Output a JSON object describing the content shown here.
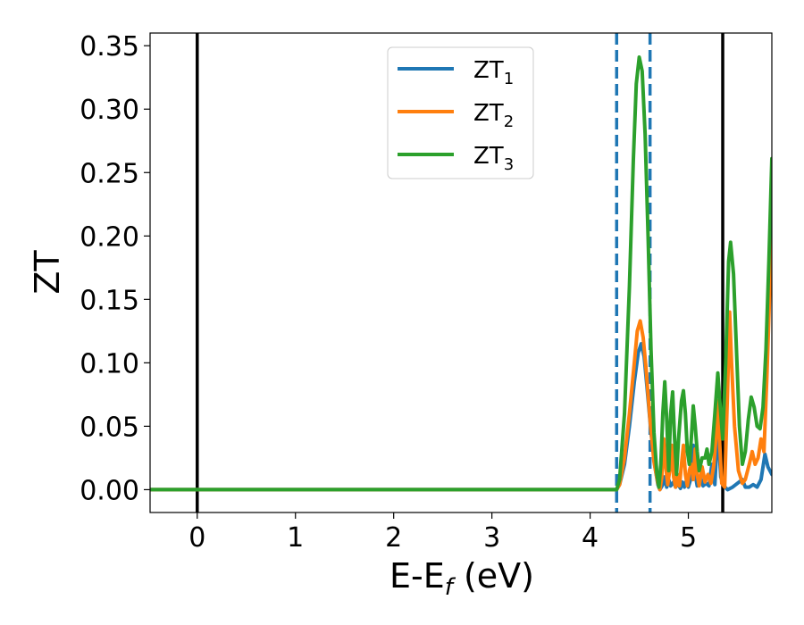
{
  "chart_data": {
    "type": "line",
    "xlabel": "E-E",
    "xlabel_sub": "f",
    "xlabel_unit": " (eV)",
    "ylabel": "ZT",
    "xlim": [
      -0.48,
      5.85
    ],
    "ylim": [
      -0.018,
      0.36
    ],
    "xticks": [
      0,
      1,
      2,
      3,
      4,
      5
    ],
    "xtick_labels": [
      "0",
      "1",
      "2",
      "3",
      "4",
      "5"
    ],
    "yticks": [
      0.0,
      0.05,
      0.1,
      0.15,
      0.2,
      0.25,
      0.3,
      0.35
    ],
    "ytick_labels": [
      "0.00",
      "0.05",
      "0.10",
      "0.15",
      "0.20",
      "0.25",
      "0.30",
      "0.35"
    ],
    "grid": false,
    "legend_position": "top-center",
    "vlines": [
      {
        "x": 0.0,
        "style": "solid",
        "color": "#000000"
      },
      {
        "x": 5.35,
        "style": "solid",
        "color": "#000000"
      },
      {
        "x": 4.27,
        "style": "dashed",
        "color": "#1f77b4"
      },
      {
        "x": 4.61,
        "style": "dashed",
        "color": "#1f77b4"
      }
    ],
    "series": [
      {
        "name": "ZT",
        "name_sub": "1",
        "color": "#1f77b4",
        "points": [
          [
            -0.48,
            0
          ],
          [
            4.27,
            0
          ],
          [
            4.3,
            0.004
          ],
          [
            4.35,
            0.02
          ],
          [
            4.4,
            0.05
          ],
          [
            4.45,
            0.085
          ],
          [
            4.49,
            0.108
          ],
          [
            4.52,
            0.115
          ],
          [
            4.55,
            0.105
          ],
          [
            4.58,
            0.08
          ],
          [
            4.62,
            0.045
          ],
          [
            4.66,
            0.018
          ],
          [
            4.69,
            0.004
          ],
          [
            4.71,
            0
          ],
          [
            4.74,
            0.004
          ],
          [
            4.76,
            0.01
          ],
          [
            4.78,
            0.002
          ],
          [
            4.8,
            0.008
          ],
          [
            4.82,
            0.003
          ],
          [
            4.85,
            0.006
          ],
          [
            4.87,
            0.002
          ],
          [
            4.89,
            0.005
          ],
          [
            4.92,
            0.001
          ],
          [
            4.94,
            0.006
          ],
          [
            4.96,
            0.002
          ],
          [
            4.98,
            0.007
          ],
          [
            5.0,
            0.002
          ],
          [
            5.03,
            0.01
          ],
          [
            5.05,
            0.035
          ],
          [
            5.07,
            0.012
          ],
          [
            5.09,
            0.003
          ],
          [
            5.12,
            0.01
          ],
          [
            5.15,
            0.003
          ],
          [
            5.18,
            0.005
          ],
          [
            5.21,
            0.003
          ],
          [
            5.24,
            0.02
          ],
          [
            5.27,
            0.004
          ],
          [
            5.3,
            0.05
          ],
          [
            5.33,
            0.01
          ],
          [
            5.36,
            0.003
          ],
          [
            5.4,
            0.0
          ],
          [
            5.45,
            0.002
          ],
          [
            5.5,
            0.005
          ],
          [
            5.55,
            0.008
          ],
          [
            5.58,
            0.002
          ],
          [
            5.62,
            0.002
          ],
          [
            5.66,
            0.004
          ],
          [
            5.7,
            0.002
          ],
          [
            5.74,
            0.008
          ],
          [
            5.78,
            0.028
          ],
          [
            5.81,
            0.018
          ],
          [
            5.85,
            0.012
          ]
        ]
      },
      {
        "name": "ZT",
        "name_sub": "2",
        "color": "#ff7f0e",
        "points": [
          [
            -0.48,
            0
          ],
          [
            4.27,
            0
          ],
          [
            4.3,
            0.004
          ],
          [
            4.35,
            0.025
          ],
          [
            4.4,
            0.06
          ],
          [
            4.45,
            0.1
          ],
          [
            4.48,
            0.125
          ],
          [
            4.51,
            0.133
          ],
          [
            4.54,
            0.12
          ],
          [
            4.57,
            0.095
          ],
          [
            4.61,
            0.055
          ],
          [
            4.65,
            0.022
          ],
          [
            4.69,
            0.005
          ],
          [
            4.71,
            0
          ],
          [
            4.73,
            0.01
          ],
          [
            4.75,
            0.04
          ],
          [
            4.77,
            0.018
          ],
          [
            4.79,
            0.004
          ],
          [
            4.81,
            0.015
          ],
          [
            4.83,
            0.035
          ],
          [
            4.85,
            0.01
          ],
          [
            4.87,
            0.002
          ],
          [
            4.89,
            0.012
          ],
          [
            4.91,
            0.003
          ],
          [
            4.93,
            0.02
          ],
          [
            4.95,
            0.035
          ],
          [
            4.97,
            0.012
          ],
          [
            4.99,
            0.003
          ],
          [
            5.01,
            0.015
          ],
          [
            5.03,
            0.02
          ],
          [
            5.05,
            0.008
          ],
          [
            5.07,
            0.032
          ],
          [
            5.09,
            0.012
          ],
          [
            5.11,
            0.003
          ],
          [
            5.14,
            0.018
          ],
          [
            5.17,
            0.006
          ],
          [
            5.2,
            0.012
          ],
          [
            5.23,
            0.005
          ],
          [
            5.26,
            0.02
          ],
          [
            5.28,
            0.04
          ],
          [
            5.3,
            0.07
          ],
          [
            5.32,
            0.035
          ],
          [
            5.34,
            0.005
          ],
          [
            5.37,
            0.002
          ],
          [
            5.4,
            0.08
          ],
          [
            5.42,
            0.14
          ],
          [
            5.44,
            0.1
          ],
          [
            5.47,
            0.05
          ],
          [
            5.51,
            0.015
          ],
          [
            5.55,
            0.005
          ],
          [
            5.58,
            0.008
          ],
          [
            5.62,
            0.02
          ],
          [
            5.65,
            0.03
          ],
          [
            5.68,
            0.02
          ],
          [
            5.71,
            0.025
          ],
          [
            5.74,
            0.04
          ],
          [
            5.77,
            0.03
          ],
          [
            5.8,
            0.09
          ],
          [
            5.83,
            0.16
          ],
          [
            5.85,
            0.2
          ]
        ]
      },
      {
        "name": "ZT",
        "name_sub": "3",
        "color": "#2ca02c",
        "points": [
          [
            -0.48,
            0
          ],
          [
            4.27,
            0
          ],
          [
            4.3,
            0.008
          ],
          [
            4.35,
            0.06
          ],
          [
            4.4,
            0.16
          ],
          [
            4.44,
            0.26
          ],
          [
            4.47,
            0.32
          ],
          [
            4.5,
            0.341
          ],
          [
            4.53,
            0.33
          ],
          [
            4.56,
            0.28
          ],
          [
            4.59,
            0.2
          ],
          [
            4.62,
            0.11
          ],
          [
            4.65,
            0.045
          ],
          [
            4.68,
            0.012
          ],
          [
            4.7,
            0.002
          ],
          [
            4.72,
            0.02
          ],
          [
            4.74,
            0.06
          ],
          [
            4.76,
            0.085
          ],
          [
            4.78,
            0.055
          ],
          [
            4.8,
            0.015
          ],
          [
            4.82,
            0.06
          ],
          [
            4.84,
            0.077
          ],
          [
            4.86,
            0.04
          ],
          [
            4.88,
            0.012
          ],
          [
            4.9,
            0.04
          ],
          [
            4.93,
            0.07
          ],
          [
            4.95,
            0.078
          ],
          [
            4.97,
            0.06
          ],
          [
            4.99,
            0.03
          ],
          [
            5.01,
            0.02
          ],
          [
            5.03,
            0.04
          ],
          [
            5.05,
            0.066
          ],
          [
            5.07,
            0.05
          ],
          [
            5.09,
            0.03
          ],
          [
            5.11,
            0.015
          ],
          [
            5.14,
            0.025
          ],
          [
            5.17,
            0.025
          ],
          [
            5.19,
            0.032
          ],
          [
            5.21,
            0.02
          ],
          [
            5.24,
            0.03
          ],
          [
            5.27,
            0.06
          ],
          [
            5.3,
            0.092
          ],
          [
            5.32,
            0.07
          ],
          [
            5.35,
            0.04
          ],
          [
            5.38,
            0.1
          ],
          [
            5.41,
            0.18
          ],
          [
            5.43,
            0.195
          ],
          [
            5.46,
            0.17
          ],
          [
            5.49,
            0.11
          ],
          [
            5.52,
            0.05
          ],
          [
            5.55,
            0.02
          ],
          [
            5.58,
            0.03
          ],
          [
            5.61,
            0.055
          ],
          [
            5.64,
            0.073
          ],
          [
            5.67,
            0.065
          ],
          [
            5.7,
            0.05
          ],
          [
            5.73,
            0.048
          ],
          [
            5.76,
            0.065
          ],
          [
            5.79,
            0.11
          ],
          [
            5.82,
            0.18
          ],
          [
            5.85,
            0.261
          ]
        ]
      }
    ]
  }
}
